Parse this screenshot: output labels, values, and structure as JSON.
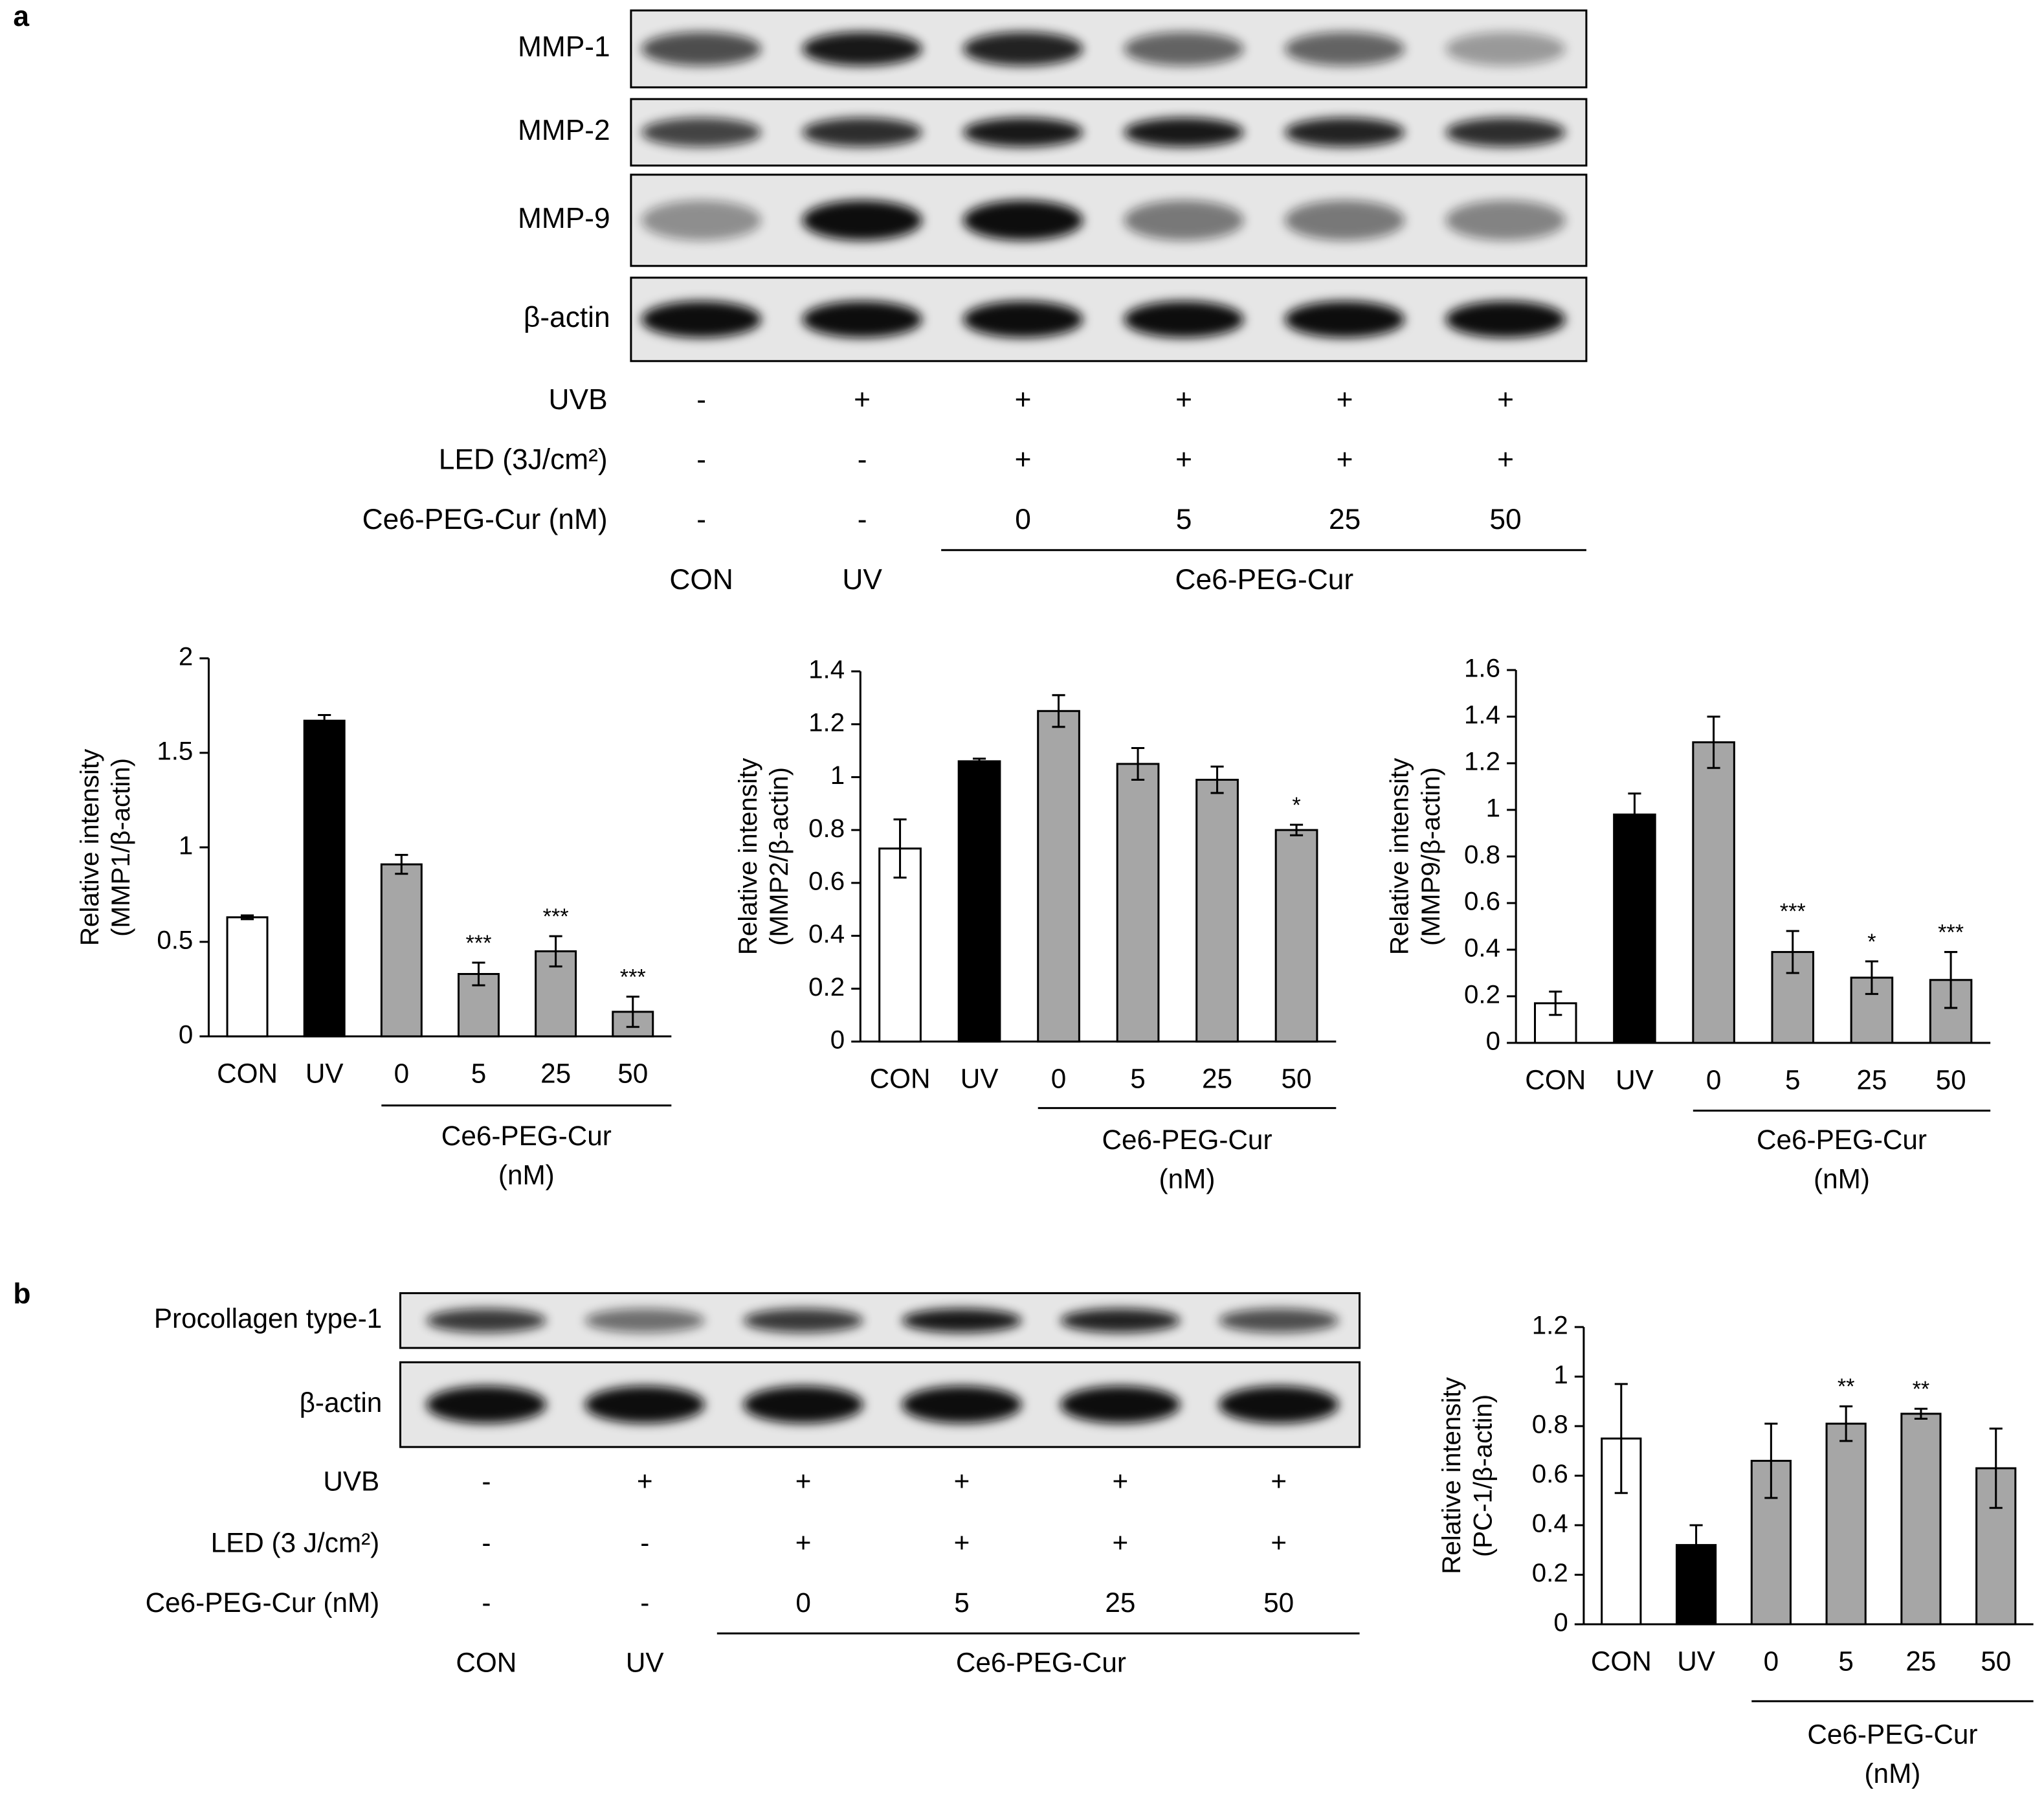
{
  "panel_labels": [
    "a",
    "b"
  ],
  "blot_a": {
    "rows": [
      "MMP-1",
      "MMP-2",
      "MMP-9",
      "β-actin"
    ],
    "conditions": [
      {
        "label": "UVB",
        "values": [
          "-",
          "+",
          "+",
          "+",
          "+",
          "+"
        ]
      },
      {
        "label": "LED (3J/cm²)",
        "values": [
          "-",
          "-",
          "+",
          "+",
          "+",
          "+"
        ]
      },
      {
        "label": "Ce6-PEG-Cur (nM)",
        "values": [
          "-",
          "-",
          "0",
          "5",
          "25",
          "50"
        ]
      }
    ],
    "groups": [
      "CON",
      "UV",
      "Ce6-PEG-Cur"
    ]
  },
  "blot_b": {
    "rows": [
      "Procollagen type-1",
      "β-actin"
    ],
    "conditions": [
      {
        "label": "UVB",
        "values": [
          "-",
          "+",
          "+",
          "+",
          "+",
          "+"
        ]
      },
      {
        "label": "LED (3 J/cm²)",
        "values": [
          "-",
          "-",
          "+",
          "+",
          "+",
          "+"
        ]
      },
      {
        "label": "Ce6-PEG-Cur (nM)",
        "values": [
          "-",
          "-",
          "0",
          "5",
          "25",
          "50"
        ]
      }
    ],
    "groups": [
      "CON",
      "UV",
      "Ce6-PEG-Cur"
    ]
  },
  "chart_data": [
    {
      "type": "bar",
      "ylabel": [
        "Relative intensity",
        "(MMP1/β-actin)"
      ],
      "categories": [
        "CON",
        "UV",
        "0",
        "5",
        "25",
        "50"
      ],
      "values": [
        0.63,
        1.67,
        0.91,
        0.33,
        0.45,
        0.13
      ],
      "errors": [
        0.01,
        0.03,
        0.05,
        0.06,
        0.08,
        0.08
      ],
      "significance": [
        null,
        null,
        null,
        "***",
        "***",
        "***"
      ],
      "colors": [
        "#ffffff",
        "#000000",
        "#a6a6a6",
        "#a6a6a6",
        "#a6a6a6",
        "#a6a6a6"
      ],
      "ylim": [
        0,
        2
      ],
      "yticks": [
        0,
        0.5,
        1,
        1.5,
        2
      ],
      "group_label": [
        "Ce6-PEG-Cur",
        "(nM)"
      ]
    },
    {
      "type": "bar",
      "ylabel": [
        "Relative intensity",
        "(MMP2/β-actin)"
      ],
      "categories": [
        "CON",
        "UV",
        "0",
        "5",
        "25",
        "50"
      ],
      "values": [
        0.73,
        1.06,
        1.25,
        1.05,
        0.99,
        0.8
      ],
      "errors": [
        0.11,
        0.01,
        0.06,
        0.06,
        0.05,
        0.02
      ],
      "significance": [
        null,
        null,
        null,
        null,
        null,
        "*"
      ],
      "colors": [
        "#ffffff",
        "#000000",
        "#a6a6a6",
        "#a6a6a6",
        "#a6a6a6",
        "#a6a6a6"
      ],
      "ylim": [
        0,
        1.4
      ],
      "yticks": [
        0,
        0.2,
        0.4,
        0.6,
        0.8,
        1,
        1.2,
        1.4
      ],
      "group_label": [
        "Ce6-PEG-Cur",
        "(nM)"
      ]
    },
    {
      "type": "bar",
      "ylabel": [
        "Relative intensity",
        "(MMP9/β-actin)"
      ],
      "categories": [
        "CON",
        "UV",
        "0",
        "5",
        "25",
        "50"
      ],
      "values": [
        0.17,
        0.98,
        1.29,
        0.39,
        0.28,
        0.27
      ],
      "errors": [
        0.05,
        0.09,
        0.11,
        0.09,
        0.07,
        0.12
      ],
      "significance": [
        null,
        null,
        null,
        "***",
        "*",
        "***"
      ],
      "colors": [
        "#ffffff",
        "#000000",
        "#a6a6a6",
        "#a6a6a6",
        "#a6a6a6",
        "#a6a6a6"
      ],
      "ylim": [
        0,
        1.6
      ],
      "yticks": [
        0,
        0.2,
        0.4,
        0.6,
        0.8,
        1,
        1.2,
        1.4,
        1.6
      ],
      "group_label": [
        "Ce6-PEG-Cur",
        "(nM)"
      ]
    },
    {
      "type": "bar",
      "ylabel": [
        "Relative intensity",
        "(PC-1/β-actin)"
      ],
      "categories": [
        "CON",
        "UV",
        "0",
        "5",
        "25",
        "50"
      ],
      "values": [
        0.75,
        0.32,
        0.66,
        0.81,
        0.85,
        0.63
      ],
      "errors": [
        0.22,
        0.08,
        0.15,
        0.07,
        0.02,
        0.16
      ],
      "significance": [
        null,
        null,
        null,
        "**",
        "**",
        null
      ],
      "colors": [
        "#ffffff",
        "#000000",
        "#a6a6a6",
        "#a6a6a6",
        "#a6a6a6",
        "#a6a6a6"
      ],
      "ylim": [
        0,
        1.2
      ],
      "yticks": [
        0,
        0.2,
        0.4,
        0.6,
        0.8,
        1,
        1.2
      ],
      "group_label": [
        "Ce6-PEG-Cur",
        "(nM)"
      ]
    }
  ]
}
